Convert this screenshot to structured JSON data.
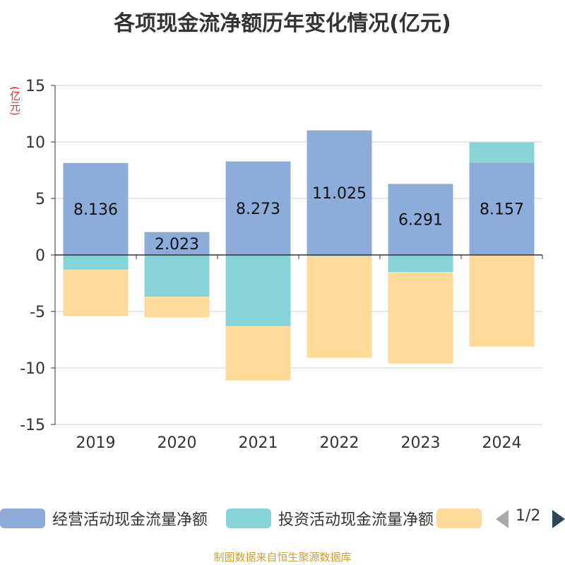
{
  "title": "各项现金流净额历年变化情况(亿元)",
  "y_unit": "(亿元)",
  "source": "制图数据来自恒生聚源数据库",
  "pager": {
    "text": "1/2"
  },
  "colors": {
    "operating": "#8eacd9",
    "investing": "#86d4d8",
    "financing": "#fdd99a",
    "axis": "#333333",
    "grid": "#cccccc",
    "unit": "#e8262b"
  },
  "legend": [
    {
      "name": "经营活动现金流量净额",
      "color": "#8eacd9"
    },
    {
      "name": "投资活动现金流量净额",
      "color": "#86d4d8"
    },
    {
      "name": "",
      "color": "#fdd99a"
    }
  ],
  "chart_data": {
    "type": "bar",
    "stacked": true,
    "title": "各项现金流净额历年变化情况(亿元)",
    "ylabel": "(亿元)",
    "ylim": [
      -15,
      15
    ],
    "yticks": [
      15,
      10,
      5,
      0,
      -5,
      -10,
      -15
    ],
    "grid": true,
    "legend_position": "bottom",
    "categories": [
      "2019",
      "2020",
      "2021",
      "2022",
      "2023",
      "2024"
    ],
    "series": [
      {
        "name": "经营活动现金流量净额",
        "color": "#8eacd9",
        "values": [
          8.136,
          2.023,
          8.273,
          11.025,
          6.291,
          8.157
        ],
        "labels": [
          "8.136",
          "2.023",
          "8.273",
          "11.025",
          "6.291",
          "8.157"
        ]
      },
      {
        "name": "投资活动现金流量净额",
        "color": "#86d4d8",
        "values": [
          -1.3,
          -3.7,
          -6.3,
          -0.1,
          -1.5,
          1.8
        ]
      },
      {
        "color": "#fdd99a",
        "values": [
          -4.1,
          -1.8,
          -4.8,
          -9.0,
          -8.1,
          -8.1
        ]
      }
    ]
  }
}
